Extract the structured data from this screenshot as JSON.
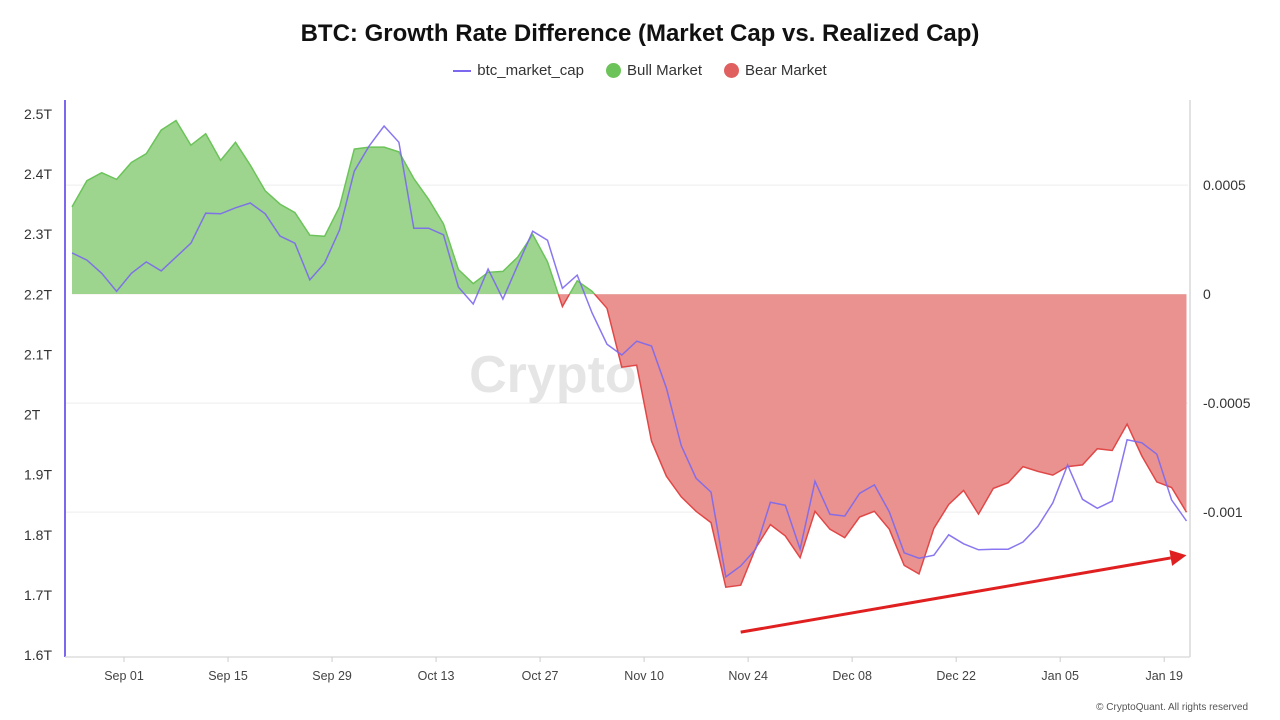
{
  "chart_data": {
    "type": "line",
    "title": "BTC: Growth Rate Difference (Market Cap vs. Realized Cap)",
    "legend": [
      {
        "name": "btc_market_cap",
        "color": "#7b68ee",
        "marker": "line"
      },
      {
        "name": "Bull Market",
        "color": "#6cc35a",
        "marker": "dot"
      },
      {
        "name": "Bear Market",
        "color": "#e06060",
        "marker": "dot"
      }
    ],
    "legend_position": "top-center",
    "x": [
      "08-25",
      "08-27",
      "08-29",
      "08-31",
      "09-02",
      "09-04",
      "09-06",
      "09-08",
      "09-10",
      "09-12",
      "09-14",
      "09-16",
      "09-18",
      "09-20",
      "09-22",
      "09-24",
      "09-26",
      "09-28",
      "09-30",
      "10-02",
      "10-04",
      "10-06",
      "10-08",
      "10-10",
      "10-12",
      "10-14",
      "10-16",
      "10-18",
      "10-20",
      "10-22",
      "10-24",
      "10-26",
      "10-28",
      "10-30",
      "11-01",
      "11-03",
      "11-05",
      "11-07",
      "11-09",
      "11-11",
      "11-13",
      "11-15",
      "11-17",
      "11-19",
      "11-21",
      "11-23",
      "11-25",
      "11-27",
      "11-29",
      "12-01",
      "12-03",
      "12-05",
      "12-07",
      "12-09",
      "12-11",
      "12-13",
      "12-15",
      "12-17",
      "12-19",
      "12-21",
      "12-23",
      "12-25",
      "12-27",
      "12-29",
      "12-31",
      "01-02",
      "01-04",
      "01-06",
      "01-08",
      "01-10",
      "01-12",
      "01-14",
      "01-16",
      "01-18",
      "01-20",
      "01-22"
    ],
    "series": [
      {
        "name": "btc_market_cap",
        "axis": "left",
        "color": "#7b68ee",
        "values": [
          2.269,
          2.257,
          2.235,
          2.205,
          2.235,
          2.254,
          2.239,
          2.262,
          2.285,
          2.335,
          2.334,
          2.344,
          2.352,
          2.334,
          2.297,
          2.285,
          2.224,
          2.252,
          2.307,
          2.405,
          2.447,
          2.48,
          2.453,
          2.31,
          2.31,
          2.299,
          2.212,
          2.184,
          2.242,
          2.192,
          2.249,
          2.305,
          2.29,
          2.21,
          2.232,
          2.169,
          2.117,
          2.099,
          2.122,
          2.114,
          2.044,
          1.948,
          1.894,
          1.871,
          1.73,
          1.748,
          1.776,
          1.854,
          1.849,
          1.776,
          1.889,
          1.834,
          1.831,
          1.869,
          1.883,
          1.838,
          1.77,
          1.761,
          1.766,
          1.8,
          1.785,
          1.775,
          1.776,
          1.776,
          1.788,
          1.814,
          1.853,
          1.916,
          1.859,
          1.844,
          1.856,
          1.958,
          1.953,
          1.934,
          1.858,
          1.823
        ]
      },
      {
        "name": "growth_rate_difference",
        "axis": "right",
        "positive_label": "Bull Market",
        "negative_label": "Bear Market",
        "positive_color": "#6cc35a",
        "positive_fill": "#9dd58f",
        "negative_color": "#e04848",
        "negative_fill": "#ea9290",
        "values": [
          0.0004,
          0.00052,
          0.000557,
          0.000526,
          0.000604,
          0.000644,
          0.000752,
          0.000796,
          0.000683,
          0.000735,
          0.000613,
          0.000696,
          0.000591,
          0.000474,
          0.000413,
          0.000374,
          0.00027,
          0.000265,
          0.0004,
          0.000665,
          0.000674,
          0.000674,
          0.000652,
          0.00053,
          0.000435,
          0.000322,
          0.000113,
          4.8e-05,
          0.0001,
          0.000104,
          0.00017,
          0.000274,
          0.000148,
          -5.7e-05,
          6.1e-05,
          1.3e-05,
          -6.5e-05,
          -0.000335,
          -0.000326,
          -0.000674,
          -0.000835,
          -0.00093,
          -0.000996,
          -0.001048,
          -0.001344,
          -0.001335,
          -0.001165,
          -0.001057,
          -0.001109,
          -0.001209,
          -0.000996,
          -0.001078,
          -0.001117,
          -0.001022,
          -0.000996,
          -0.001078,
          -0.001244,
          -0.001283,
          -0.001074,
          -0.000965,
          -0.0009,
          -0.001009,
          -0.000891,
          -0.000865,
          -0.000791,
          -0.000813,
          -0.00083,
          -0.000791,
          -0.000783,
          -0.000709,
          -0.000717,
          -0.000596,
          -0.000743,
          -0.000861,
          -0.000887,
          -0.001
        ]
      }
    ],
    "left_axis": {
      "ylim": [
        1.6,
        2.5
      ],
      "ticks": [
        2.5,
        2.4,
        2.3,
        2.2,
        2.1,
        2.0,
        1.9,
        1.8,
        1.7,
        1.6
      ],
      "tick_labels": [
        "2.5T",
        "2.4T",
        "2.3T",
        "2.2T",
        "2.1T",
        "2T",
        "1.9T",
        "1.8T",
        "1.7T",
        "1.6T"
      ],
      "color": "#7b68ee"
    },
    "right_axis": {
      "ylim": [
        -0.001655,
        0.000826
      ],
      "ticks": [
        0.0005,
        0,
        -0.0005,
        -0.001
      ],
      "tick_labels": [
        "0.0005",
        "0",
        "-0.0005",
        "-0.001"
      ]
    },
    "x_ticks": [
      {
        "date": "09-01",
        "label": "Sep 01"
      },
      {
        "date": "09-15",
        "label": "Sep 15"
      },
      {
        "date": "09-29",
        "label": "Sep 29"
      },
      {
        "date": "10-13",
        "label": "Oct 13"
      },
      {
        "date": "10-27",
        "label": "Oct 27"
      },
      {
        "date": "11-10",
        "label": "Nov 10"
      },
      {
        "date": "11-24",
        "label": "Nov 24"
      },
      {
        "date": "12-08",
        "label": "Dec 08"
      },
      {
        "date": "12-22",
        "label": "Dec 22"
      },
      {
        "date": "01-05",
        "label": "Jan 05"
      },
      {
        "date": "01-19",
        "label": "Jan 19"
      }
    ],
    "grid": "horizontal at right-axis ticks",
    "annotations": [
      {
        "type": "arrow",
        "axis": "left",
        "from": [
          "11-23",
          1.638
        ],
        "to": [
          "01-22",
          1.766
        ],
        "color": "#e02020"
      }
    ]
  },
  "watermark": "CryptoQuant",
  "footer": "© CryptoQuant. All rights reserved"
}
